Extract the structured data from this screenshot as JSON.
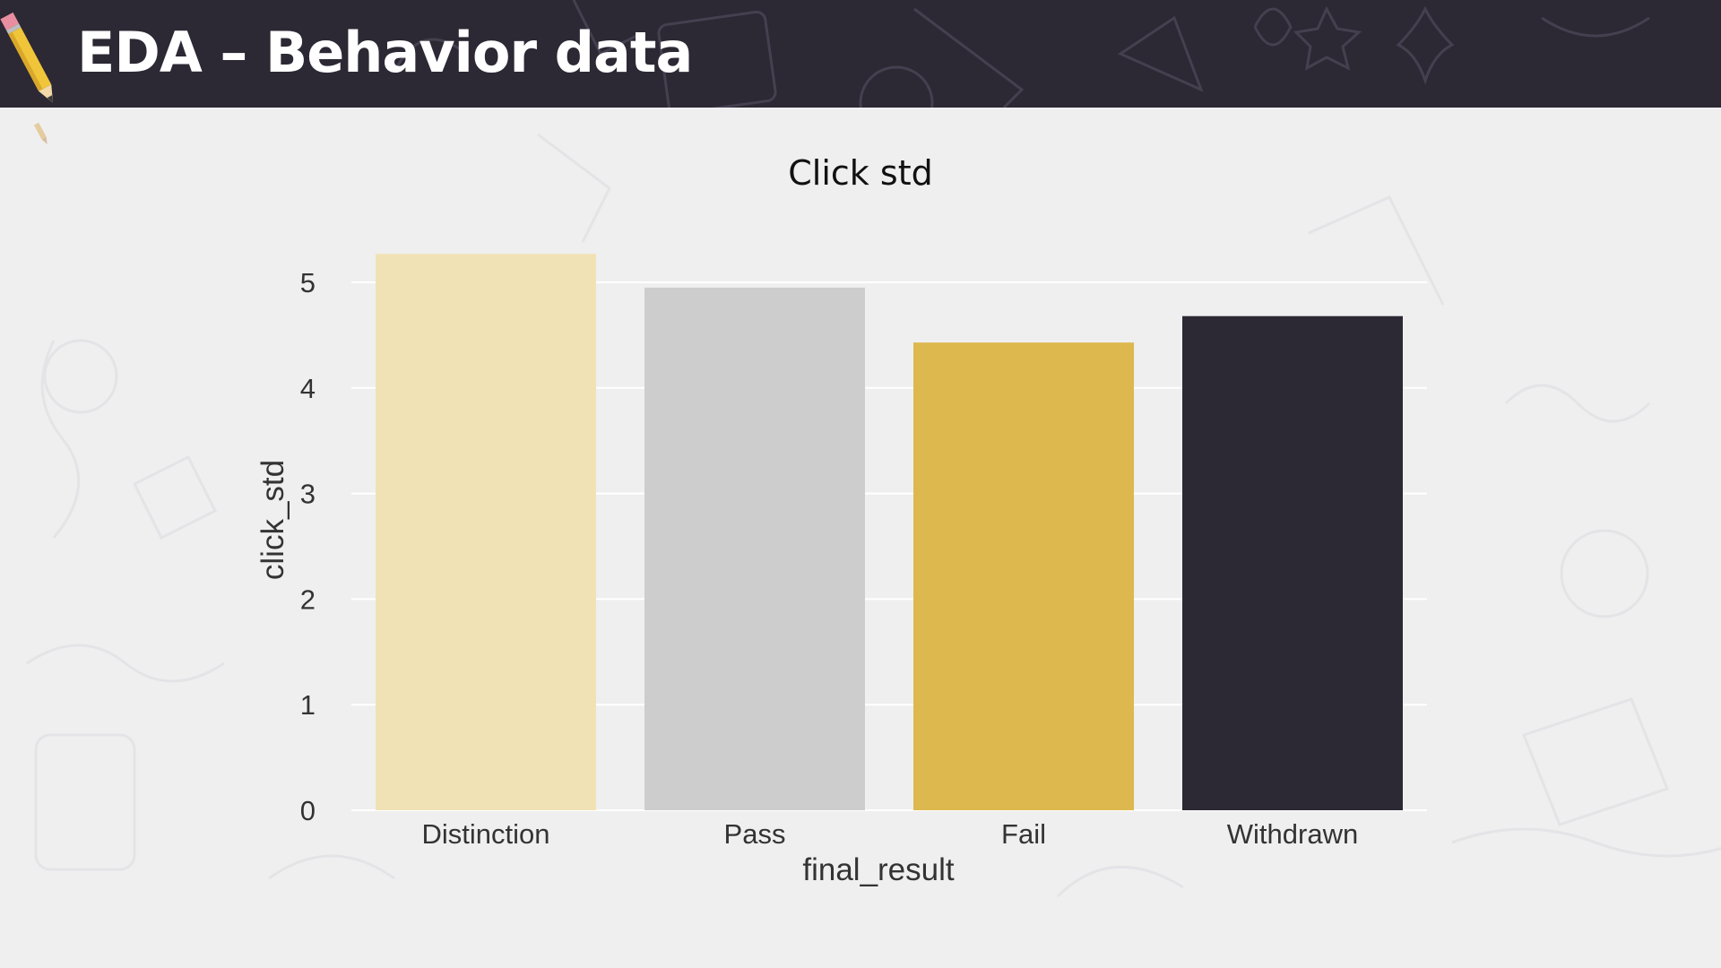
{
  "slide": {
    "title": "EDA – Behavior data"
  },
  "colors": {
    "header_bg": "#2c2834",
    "page_bg": "#efeff0",
    "gridline": "#ffffff"
  },
  "icons": [
    "pencil-icon"
  ],
  "chart_data": {
    "type": "bar",
    "title": "Click std",
    "xlabel": "final_result",
    "ylabel": "click_std",
    "categories": [
      "Distinction",
      "Pass",
      "Fail",
      "Withdrawn"
    ],
    "values": [
      5.27,
      4.95,
      4.43,
      4.68
    ],
    "colors": [
      "#f1e2b6",
      "#cdcdcd",
      "#ddb84e",
      "#2c2834"
    ],
    "ylim": [
      0,
      5.4
    ],
    "yticks": [
      0,
      1,
      2,
      3,
      4,
      5
    ],
    "grid": true,
    "legend": "none"
  }
}
